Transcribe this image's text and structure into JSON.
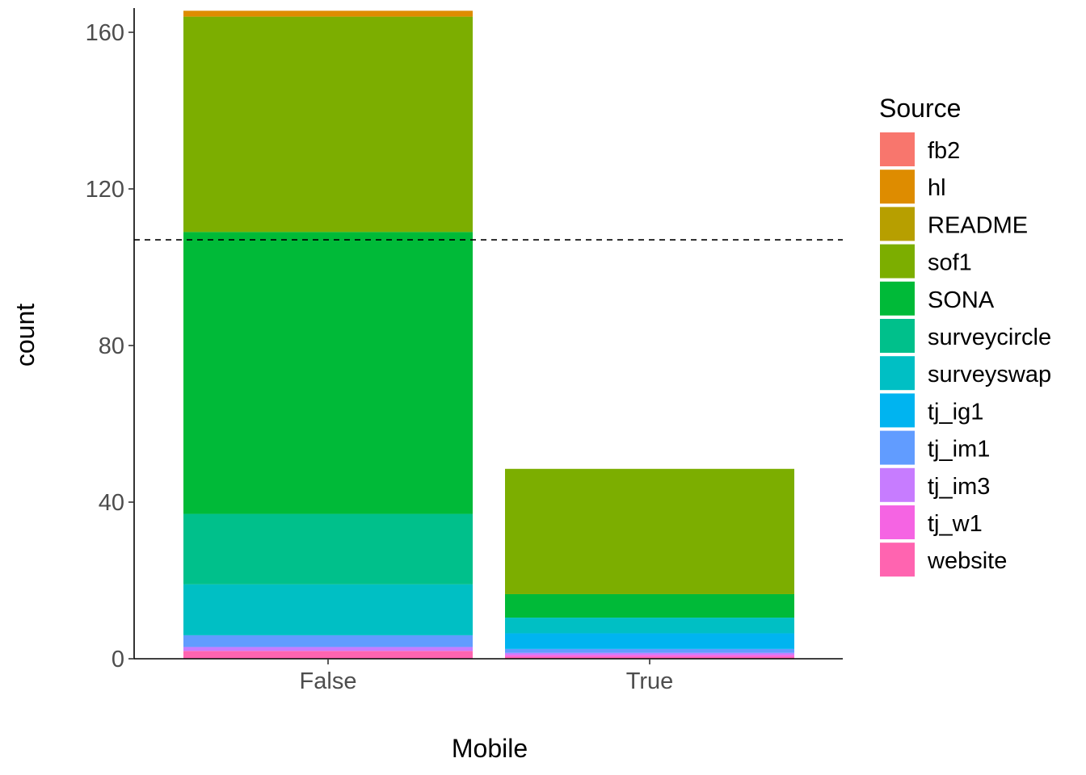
{
  "chart_data": {
    "type": "bar",
    "stacked": true,
    "xlabel": "Mobile",
    "ylabel": "count",
    "categories": [
      "False",
      "True"
    ],
    "ylim": [
      0,
      165
    ],
    "yticks": [
      0,
      40,
      80,
      120,
      160
    ],
    "grid": false,
    "reference_line": {
      "y": 107,
      "style": "dashed",
      "color": "#000000"
    },
    "legend": {
      "title": "Source",
      "position": "right"
    },
    "series": [
      {
        "name": "fb2",
        "color": "#F8766D",
        "values": [
          0,
          0
        ]
      },
      {
        "name": "hl",
        "color": "#DE8C00",
        "values": [
          1.5,
          0
        ]
      },
      {
        "name": "README",
        "color": "#B79F00",
        "values": [
          0,
          0
        ]
      },
      {
        "name": "sof1",
        "color": "#7CAE00",
        "values": [
          55,
          32
        ]
      },
      {
        "name": "SONA",
        "color": "#00BA38",
        "values": [
          72,
          6
        ]
      },
      {
        "name": "surveycircle",
        "color": "#00C08B",
        "values": [
          18,
          0
        ]
      },
      {
        "name": "surveyswap",
        "color": "#00BFC4",
        "values": [
          13,
          4
        ]
      },
      {
        "name": "tj_ig1",
        "color": "#00B4F0",
        "values": [
          0,
          4
        ]
      },
      {
        "name": "tj_im1",
        "color": "#619CFF",
        "values": [
          3,
          1
        ]
      },
      {
        "name": "tj_im3",
        "color": "#C77CFF",
        "values": [
          1,
          0.5
        ]
      },
      {
        "name": "tj_w1",
        "color": "#F564E3",
        "values": [
          0,
          0.5
        ]
      },
      {
        "name": "website",
        "color": "#FF64B0",
        "values": [
          2,
          0.5
        ]
      }
    ]
  }
}
